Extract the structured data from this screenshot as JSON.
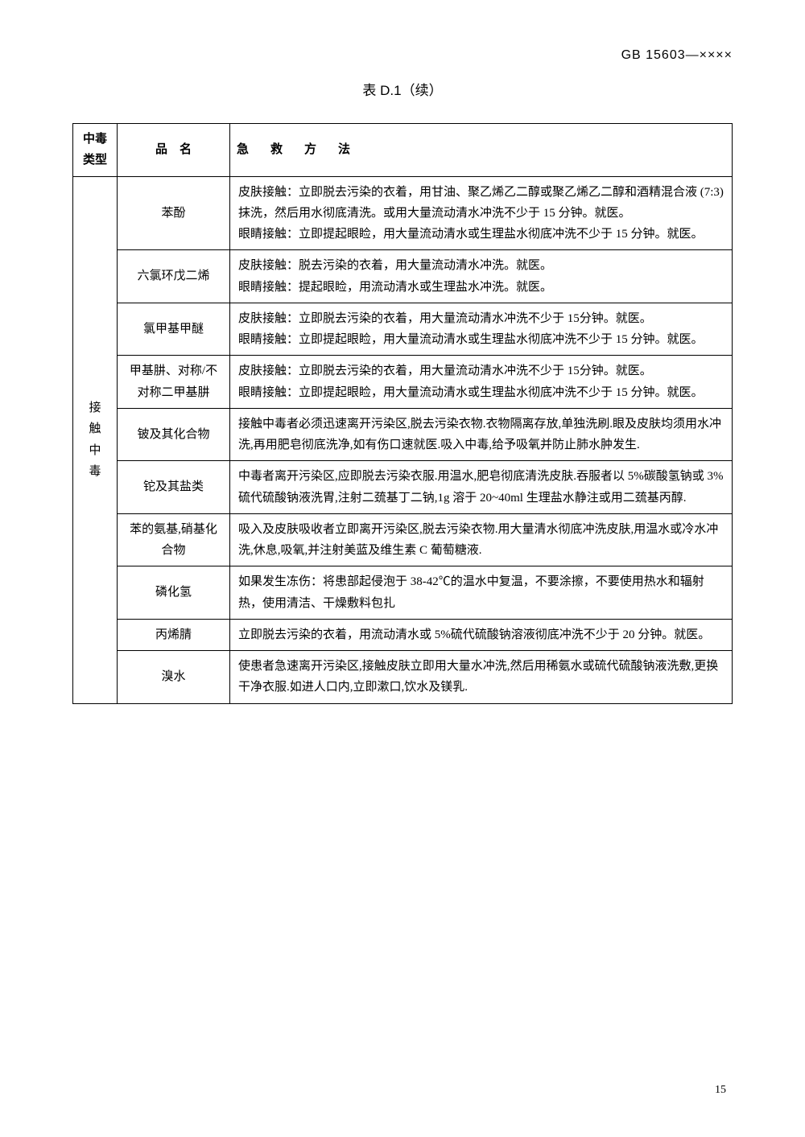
{
  "header_code": "GB 15603—××××",
  "table_title": "表 D.1（续）",
  "page_number": "15",
  "columns": {
    "type": "中毒类型",
    "name": "品　名",
    "method": "急　救　方　法"
  },
  "type_label": "接触中毒",
  "rows": [
    {
      "name": "苯酚",
      "method": "皮肤接触：立即脱去污染的衣着，用甘油、聚乙烯乙二醇或聚乙烯乙二醇和酒精混合液 (7:3)抹洗，然后用水彻底清洗。或用大量流动清水冲洗不少于 15 分钟。就医。\n眼睛接触：立即提起眼睑，用大量流动清水或生理盐水彻底冲洗不少于 15 分钟。就医。"
    },
    {
      "name": "六氯环戊二烯",
      "method": "皮肤接触：脱去污染的衣着，用大量流动清水冲洗。就医。\n眼睛接触：提起眼睑，用流动清水或生理盐水冲洗。就医。"
    },
    {
      "name": "氯甲基甲醚",
      "method": "皮肤接触：立即脱去污染的衣着，用大量流动清水冲洗不少于 15分钟。就医。\n眼睛接触：立即提起眼睑，用大量流动清水或生理盐水彻底冲洗不少于 15 分钟。就医。"
    },
    {
      "name": "甲基肼、对称/不对称二甲基肼",
      "method": "皮肤接触：立即脱去污染的衣着，用大量流动清水冲洗不少于 15分钟。就医。\n眼睛接触：立即提起眼睑，用大量流动清水或生理盐水彻底冲洗不少于 15 分钟。就医。"
    },
    {
      "name": "铍及其化合物",
      "method": "接触中毒者必须迅速离开污染区,脱去污染衣物.衣物隔离存放,单独洗刷.眼及皮肤均须用水冲洗,再用肥皂彻底洗净,如有伤口速就医.吸入中毒,给予吸氧并防止肺水肿发生."
    },
    {
      "name": "铊及其盐类",
      "method": "中毒者离开污染区,应即脱去污染衣服.用温水,肥皂彻底清洗皮肤.吞服者以 5%碳酸氢钠或 3%硫代硫酸钠液洗胃,注射二巯基丁二钠,1g 溶于 20~40ml 生理盐水静注或用二巯基丙醇."
    },
    {
      "name": "苯的氨基,硝基化合物",
      "method": "吸入及皮肤吸收者立即离开污染区,脱去污染衣物.用大量清水彻底冲洗皮肤,用温水或冷水冲洗,休息,吸氧,并注射美蓝及维生素 C 葡萄糖液."
    },
    {
      "name": "磷化氢",
      "method": "如果发生冻伤：将患部起侵泡于 38-42℃的温水中复温，不要涂擦，不要使用热水和辐射热，使用清洁、干燥敷料包扎"
    },
    {
      "name": "丙烯腈",
      "method": "立即脱去污染的衣着，用流动清水或 5%硫代硫酸钠溶液彻底冲洗不少于 20 分钟。就医。"
    },
    {
      "name": "溴水",
      "method": "使患者急速离开污染区,接触皮肤立即用大量水冲洗,然后用稀氨水或硫代硫酸钠液洗敷,更换干净衣服.如进人口内,立即漱口,饮水及镁乳."
    }
  ]
}
